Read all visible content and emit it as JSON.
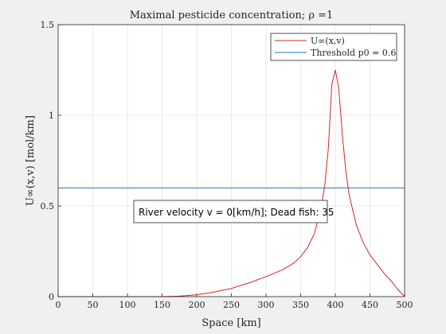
{
  "chart_data": {
    "type": "line",
    "title": "Maximal pesticide concentration; ρ =1",
    "xlabel": "Space [km]",
    "ylabel": "U∞(x,v) [mol/km]",
    "xlim": [
      0,
      500
    ],
    "ylim": [
      0,
      1.5
    ],
    "xticks": [
      0,
      50,
      100,
      150,
      200,
      250,
      300,
      350,
      400,
      450,
      500
    ],
    "yticks": [
      0,
      0.5,
      1,
      1.5
    ],
    "ytick_labels": [
      "0",
      "0.5",
      "1",
      "1.5"
    ],
    "grid": true,
    "legend_position": "top-right",
    "series": [
      {
        "name": "U∞(x,v)",
        "color": "#d62728",
        "x": [
          0,
          50,
          100,
          150,
          175,
          200,
          225,
          250,
          275,
          300,
          325,
          340,
          350,
          360,
          370,
          380,
          385,
          390,
          395,
          400,
          405,
          410,
          415,
          420,
          430,
          440,
          450,
          460,
          470,
          480,
          490,
          500
        ],
        "y": [
          0,
          0,
          0,
          0,
          0.003,
          0.01,
          0.025,
          0.045,
          0.075,
          0.11,
          0.15,
          0.185,
          0.22,
          0.27,
          0.35,
          0.5,
          0.62,
          0.82,
          1.17,
          1.25,
          1.15,
          0.9,
          0.7,
          0.56,
          0.4,
          0.3,
          0.23,
          0.18,
          0.13,
          0.09,
          0.04,
          0
        ]
      },
      {
        "name": "Threshold p0 = 0.6",
        "color": "#1f77b4",
        "x": [
          0,
          500
        ],
        "y": [
          0.6,
          0.6
        ]
      }
    ],
    "annotation": "River velocity v = 0[km/h]; Dead fish: 35"
  }
}
